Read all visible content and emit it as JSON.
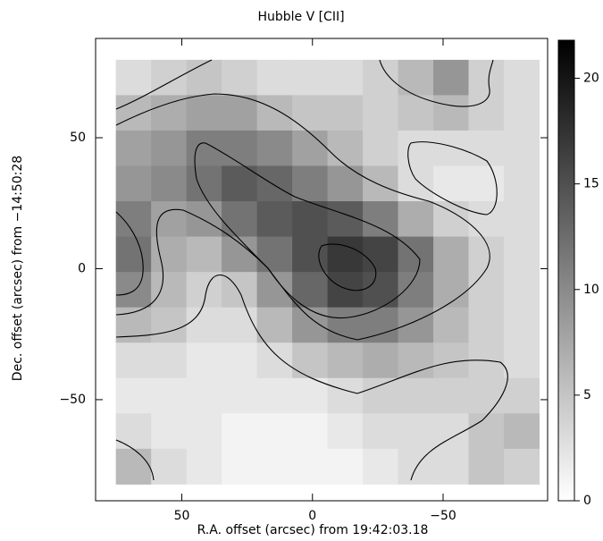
{
  "chart_data": {
    "type": "heatmap",
    "title": "Hubble V [CII]",
    "xlabel": "R.A. offset (arcsec) from 19:42:03.18",
    "ylabel": "Dec. offset (arcsec) from −14:50:28",
    "x": [
      68.5,
      55,
      41.5,
      28,
      14.5,
      1,
      -12.5,
      -26,
      -39.5,
      -53,
      -66.5,
      -80
    ],
    "y": [
      73,
      59.5,
      46,
      32.5,
      19,
      5.5,
      -8,
      -21.5,
      -35,
      -48.5,
      -62,
      -75.5
    ],
    "z": [
      [
        3,
        4,
        5,
        4,
        3,
        3,
        3,
        4,
        6,
        9,
        4,
        3
      ],
      [
        6,
        7,
        8,
        8,
        6,
        5,
        5,
        4,
        5,
        6,
        4,
        3
      ],
      [
        8,
        9,
        11,
        11,
        10,
        8,
        6,
        4,
        3,
        3,
        3,
        3
      ],
      [
        9,
        10,
        12,
        14,
        13,
        11,
        9,
        6,
        3,
        2,
        2,
        3
      ],
      [
        11,
        8,
        9,
        12,
        14,
        15,
        14,
        11,
        7,
        4,
        3,
        3
      ],
      [
        12,
        7,
        6,
        9,
        12,
        15,
        17,
        16,
        12,
        7,
        4,
        3
      ],
      [
        10,
        6,
        4,
        5,
        9,
        13,
        16,
        15,
        11,
        7,
        4,
        3
      ],
      [
        6,
        5,
        3,
        3,
        6,
        9,
        11,
        11,
        9,
        6,
        4,
        3
      ],
      [
        3,
        3,
        2,
        2,
        3,
        5,
        6,
        7,
        6,
        5,
        4,
        3
      ],
      [
        2,
        2,
        2,
        2,
        2,
        2,
        3,
        4,
        4,
        4,
        4,
        4
      ],
      [
        3,
        2,
        2,
        1,
        1,
        1,
        2,
        3,
        3,
        3,
        5,
        6
      ],
      [
        6,
        3,
        2,
        1,
        1,
        1,
        1,
        2,
        3,
        3,
        5,
        4
      ]
    ],
    "xlim": [
      83,
      -90
    ],
    "ylim": [
      -88.6,
      87.9
    ],
    "xticks": [
      50,
      0,
      {
        "value": -50,
        "label": "−50"
      }
    ],
    "yticks": [
      {
        "value": -50,
        "label": "−50"
      },
      0,
      50
    ],
    "zlim": [
      0,
      21.8
    ],
    "zticks": [
      0,
      5,
      10,
      15,
      20
    ]
  }
}
